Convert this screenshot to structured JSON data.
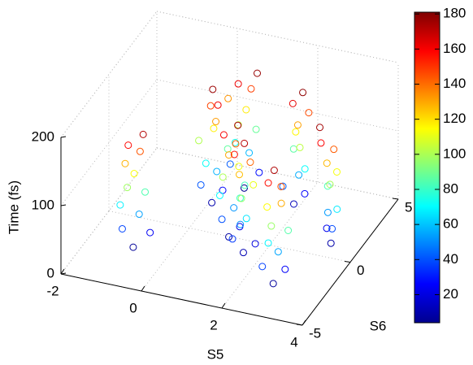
{
  "chart_data": {
    "type": "scatter3d",
    "xlabel": "S5",
    "ylabel": "S6",
    "zlabel": "Time (fs)",
    "xlim": [
      -2,
      4
    ],
    "xticks": [
      -2,
      0,
      2,
      4
    ],
    "ylim": [
      -5,
      5
    ],
    "yticks": [
      -5,
      0,
      5
    ],
    "zlim": [
      0,
      200
    ],
    "zticks": [
      0,
      100,
      200
    ],
    "colormap": "jet",
    "clim": [
      4,
      181
    ],
    "cticks": [
      20,
      40,
      60,
      80,
      100,
      120,
      140,
      160,
      180
    ],
    "grid": true,
    "x": [
      -0.8,
      0.2,
      1.1,
      2.0,
      2.8,
      3.4,
      0.6,
      1.7,
      -0.5,
      0.4,
      1.3,
      2.2,
      3.0,
      3.2,
      0.9,
      1.9,
      -1.0,
      0.0,
      1.0,
      1.8,
      2.6,
      3.5,
      0.3,
      1.5,
      -0.7,
      0.3,
      1.2,
      2.1,
      2.9,
      3.3,
      0.7,
      1.6,
      -1.1,
      0.1,
      0.9,
      2.3,
      2.7,
      3.6,
      0.4,
      1.8,
      -0.6,
      0.5,
      1.4,
      1.9,
      3.1,
      3.2,
      0.8,
      1.5,
      -0.9,
      -0.1,
      1.0,
      2.2,
      2.8,
      3.4,
      0.5,
      1.7,
      -0.8,
      0.2,
      1.3,
      2.0,
      2.6,
      3.5,
      0.6,
      1.9,
      -1.0,
      0.3,
      1.1,
      2.1,
      3.0,
      3.3,
      0.2,
      1.6,
      -0.7,
      0.1,
      1.2,
      2.3,
      2.9,
      3.4,
      0.7,
      1.8,
      -0.9,
      0.4,
      1.0,
      2.0,
      2.7,
      3.2,
      0.5,
      1.5,
      -0.6,
      0.2,
      1.3,
      2.2,
      2.8,
      3.1,
      0.9,
      1.7
    ],
    "y": [
      -2.5,
      1.5,
      -0.5,
      2.5,
      -3.0,
      0.5,
      3.2,
      -1.5,
      -2.0,
      1.8,
      -0.2,
      2.8,
      -2.6,
      0.9,
      3.5,
      -1.1,
      -2.8,
      1.2,
      -0.8,
      2.2,
      -3.3,
      0.2,
      3.0,
      -1.8,
      -2.3,
      1.6,
      -0.4,
      2.6,
      -2.9,
      0.6,
      3.3,
      -1.4,
      -2.6,
      1.3,
      -0.6,
      2.4,
      -3.1,
      0.3,
      3.1,
      -1.6,
      -2.1,
      1.9,
      -0.1,
      2.9,
      -2.7,
      1.0,
      3.6,
      -1.0,
      -2.7,
      1.4,
      -0.7,
      2.3,
      -3.2,
      0.4,
      3.0,
      -1.7,
      -2.4,
      1.7,
      -0.3,
      2.7,
      -2.8,
      0.7,
      3.4,
      -1.3,
      -2.5,
      1.5,
      -0.5,
      2.5,
      -3.0,
      0.5,
      3.2,
      -1.5,
      -2.2,
      1.8,
      -0.2,
      2.8,
      -2.6,
      0.8,
      3.5,
      -1.2,
      -2.6,
      1.3,
      -0.6,
      2.4,
      -3.1,
      0.3,
      3.0,
      -1.6,
      -2.3,
      1.6,
      -0.4,
      2.6,
      -2.9,
      0.6,
      3.3,
      -1.4
    ],
    "z": [
      8,
      12,
      10,
      14,
      9,
      11,
      7,
      13,
      24,
      27,
      22,
      26,
      25,
      23,
      28,
      21,
      38,
      41,
      40,
      43,
      37,
      39,
      42,
      36,
      54,
      57,
      52,
      56,
      55,
      53,
      58,
      51,
      68,
      72,
      70,
      71,
      69,
      67,
      73,
      66,
      84,
      87,
      82,
      86,
      85,
      83,
      88,
      81,
      98,
      101,
      100,
      103,
      97,
      99,
      102,
      96,
      114,
      117,
      112,
      116,
      115,
      113,
      118,
      111,
      128,
      132,
      130,
      131,
      129,
      127,
      133,
      126,
      144,
      147,
      142,
      146,
      145,
      143,
      148,
      141,
      158,
      161,
      160,
      163,
      157,
      159,
      162,
      156,
      172,
      176,
      174,
      178,
      173,
      175,
      177,
      171
    ]
  }
}
